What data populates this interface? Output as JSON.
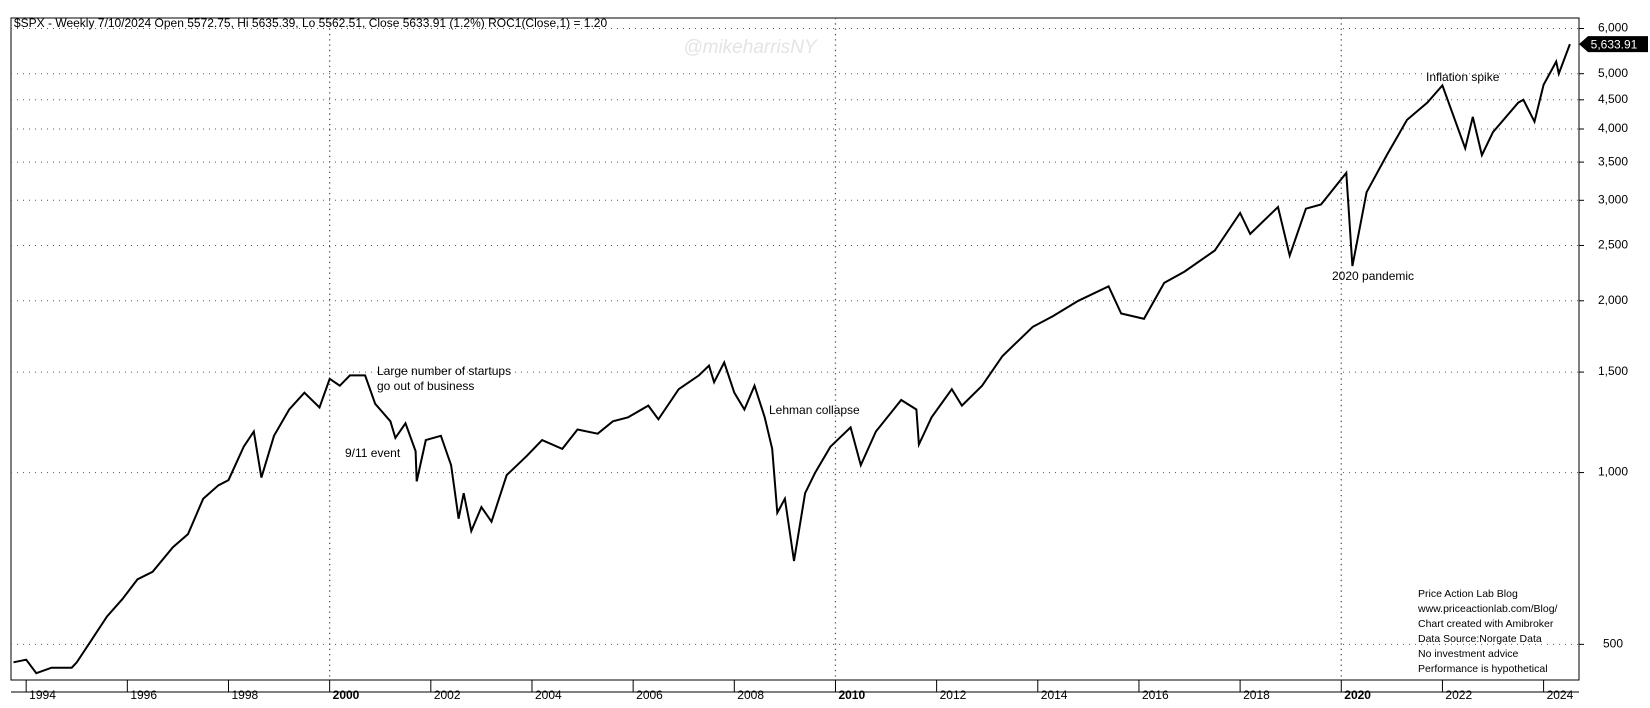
{
  "chart_data": {
    "type": "line",
    "title": "$SPX - Weekly 7/10/2024 Open 5572.75, Hi 5635.39, Lo 5562.51, Close 5633.91 (1.2%) ROC1(Close,1) = 1.20",
    "watermark": "@mikeharrisNY",
    "log_scale": true,
    "grid": true,
    "color": "#000000",
    "xlim": [
      1993.7,
      2024.7
    ],
    "xticks": [
      1994,
      1996,
      1998,
      2000,
      2002,
      2004,
      2006,
      2008,
      2010,
      2012,
      2014,
      2016,
      2018,
      2020,
      2022,
      2024
    ],
    "bold_xticks": [
      2000,
      2010,
      2020
    ],
    "ylim": [
      433,
      6260
    ],
    "yticks": [
      500,
      {
        "value": 1000,
        "label": "1,000"
      },
      {
        "value": 1500,
        "label": "1,500"
      },
      {
        "value": 2000,
        "label": "2,000"
      },
      {
        "value": 2500,
        "label": "2,500"
      },
      {
        "value": 3000,
        "label": "3,000"
      },
      {
        "value": 3500,
        "label": "3,500"
      },
      {
        "value": 4000,
        "label": "4,000"
      },
      {
        "value": 4500,
        "label": "4,500"
      },
      {
        "value": 5000,
        "label": "5,000"
      },
      {
        "value": 6000,
        "label": "6,000"
      }
    ],
    "x": [
      1993.75,
      1994.0,
      1994.2,
      1994.5,
      1994.9,
      1995.0,
      1995.3,
      1995.6,
      1995.9,
      1996.2,
      1996.5,
      1996.9,
      1997.2,
      1997.5,
      1997.8,
      1998.0,
      1998.3,
      1998.5,
      1998.65,
      1998.9,
      1999.2,
      1999.5,
      1999.8,
      2000.0,
      2000.2,
      2000.4,
      2000.7,
      2000.9,
      2001.2,
      2001.3,
      2001.5,
      2001.7,
      2001.72,
      2001.9,
      2002.2,
      2002.4,
      2002.55,
      2002.65,
      2002.8,
      2003.0,
      2003.2,
      2003.5,
      2003.9,
      2004.2,
      2004.6,
      2004.9,
      2005.3,
      2005.6,
      2005.9,
      2006.3,
      2006.5,
      2006.9,
      2007.3,
      2007.5,
      2007.6,
      2007.8,
      2008.0,
      2008.2,
      2008.4,
      2008.6,
      2008.75,
      2008.85,
      2009.0,
      2009.18,
      2009.4,
      2009.6,
      2009.9,
      2010.3,
      2010.5,
      2010.8,
      2011.3,
      2011.6,
      2011.65,
      2011.9,
      2012.3,
      2012.5,
      2012.9,
      2013.3,
      2013.9,
      2014.3,
      2014.8,
      2015.4,
      2015.65,
      2016.1,
      2016.5,
      2016.9,
      2017.5,
      2018.0,
      2018.2,
      2018.75,
      2018.98,
      2019.3,
      2019.6,
      2020.1,
      2020.22,
      2020.5,
      2020.9,
      2021.3,
      2021.7,
      2022.0,
      2022.45,
      2022.6,
      2022.78,
      2023.0,
      2023.5,
      2023.6,
      2023.82,
      2024.0,
      2024.25,
      2024.3,
      2024.52
    ],
    "values": [
      465,
      470,
      445,
      455,
      455,
      465,
      510,
      560,
      600,
      650,
      670,
      740,
      780,
      900,
      950,
      970,
      1110,
      1180,
      980,
      1160,
      1290,
      1380,
      1300,
      1460,
      1420,
      1480,
      1480,
      1320,
      1230,
      1150,
      1220,
      1090,
      965,
      1140,
      1160,
      1030,
      830,
      920,
      790,
      870,
      820,
      990,
      1070,
      1140,
      1100,
      1190,
      1170,
      1230,
      1250,
      1310,
      1240,
      1400,
      1480,
      1540,
      1440,
      1560,
      1380,
      1290,
      1420,
      1250,
      1100,
      850,
      900,
      700,
      920,
      1000,
      1110,
      1200,
      1030,
      1180,
      1340,
      1290,
      1120,
      1250,
      1400,
      1310,
      1420,
      1600,
      1800,
      1880,
      2000,
      2120,
      1900,
      1860,
      2150,
      2250,
      2450,
      2850,
      2620,
      2920,
      2400,
      2900,
      2950,
      3350,
      2300,
      3100,
      3600,
      4150,
      4450,
      4770,
      3700,
      4200,
      3600,
      3950,
      4450,
      4500,
      4120,
      4780,
      5250,
      5000,
      5634
    ],
    "close_label": "5,633.91",
    "annotations": [
      [
        "Large number of startups",
        "go out of business"
      ],
      [
        "9/11 event"
      ],
      [
        "Lehman collapse"
      ],
      [
        "2020 pandemic"
      ],
      [
        "Inflation spike"
      ]
    ],
    "notes": [
      "Price Action Lab Blog",
      "www.priceactionlab.com/Blog/",
      "Chart created with Amibroker",
      "Data Source:Norgate Data",
      "No investment advice",
      "Performance is hypothetical"
    ]
  }
}
